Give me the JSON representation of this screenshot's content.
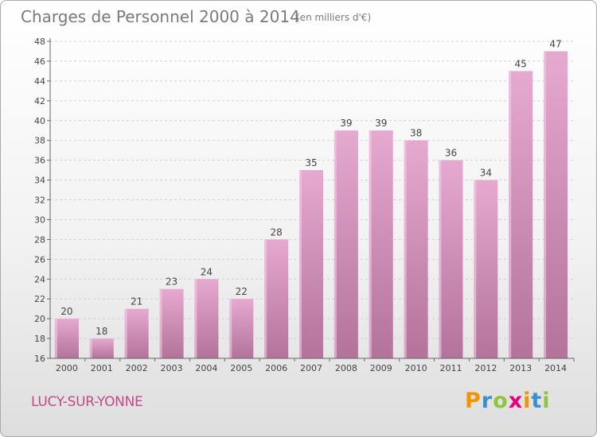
{
  "chart_data": {
    "type": "bar",
    "title": "Charges de Personnel 2000 à 2014",
    "subtitle": "(en milliers d'€)",
    "categories": [
      "2000",
      "2001",
      "2002",
      "2003",
      "2004",
      "2005",
      "2006",
      "2007",
      "2008",
      "2009",
      "2010",
      "2011",
      "2012",
      "2013",
      "2014"
    ],
    "values": [
      20,
      18,
      21,
      23,
      24,
      22,
      28,
      35,
      39,
      39,
      38,
      36,
      34,
      45,
      47
    ],
    "ylim": [
      16,
      48
    ],
    "yticks": [
      16,
      18,
      20,
      22,
      24,
      26,
      28,
      30,
      32,
      34,
      36,
      38,
      40,
      42,
      44,
      46,
      48
    ],
    "grid": true,
    "bar_color": "#d98bbd",
    "title_color": "#7a7a7a"
  },
  "commune": {
    "name": "LUCY-SUR-YONNE",
    "color": "#c6478a"
  },
  "logo": {
    "letters": [
      "P",
      "r",
      "o",
      "x",
      "i",
      "t",
      "i"
    ],
    "colors": [
      "#f29400",
      "#3a8fd1",
      "#8cc63f",
      "#e6007e",
      "#f29400",
      "#3a8fd1",
      "#8cc63f"
    ]
  }
}
